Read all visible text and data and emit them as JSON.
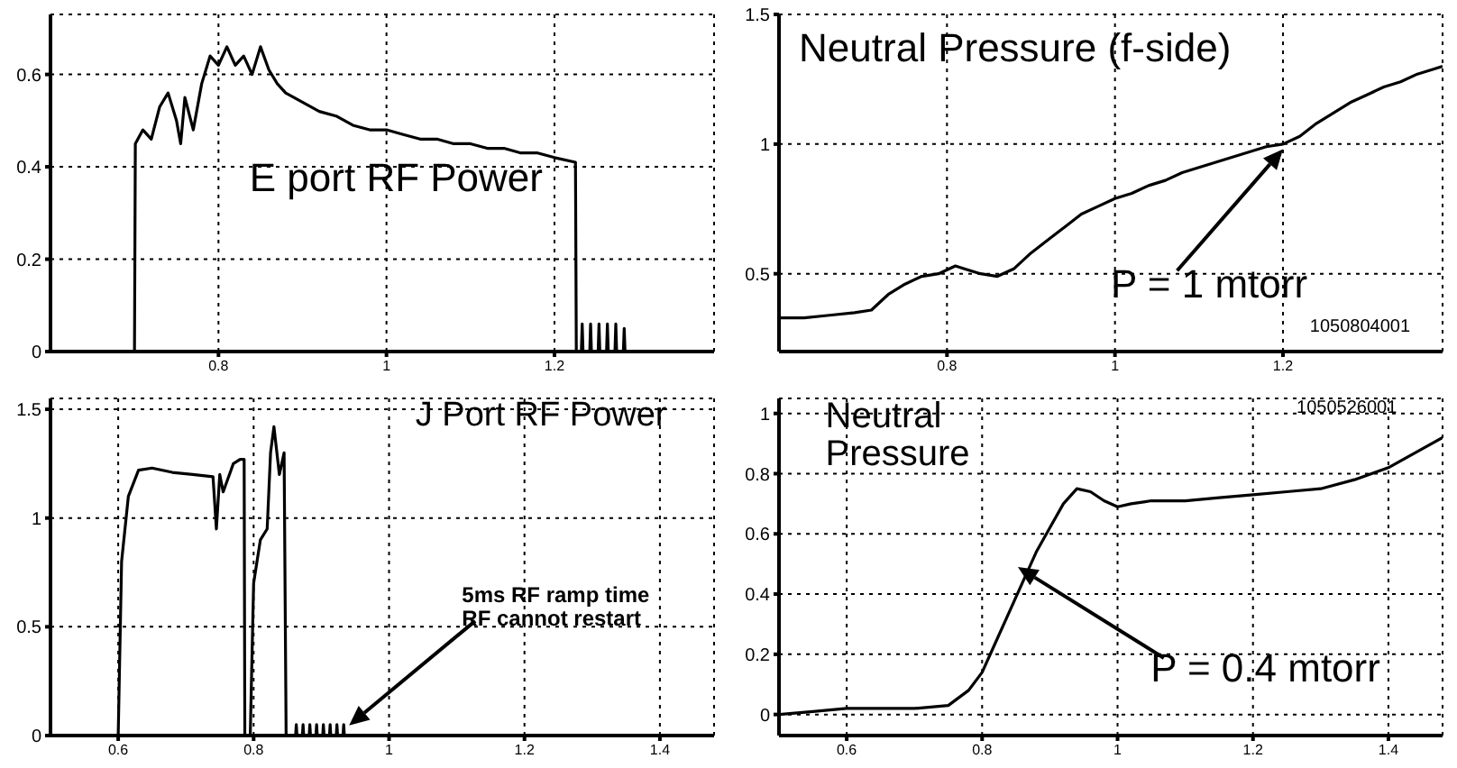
{
  "chart_data": [
    {
      "type": "line",
      "title": "E port RF Power",
      "xlim": [
        0.6,
        1.39
      ],
      "xticks": [
        0.8,
        1,
        1.2
      ],
      "ylim": [
        0,
        0.73
      ],
      "yticks": [
        0,
        0.2,
        0.4,
        0.6
      ],
      "grid": true,
      "legend": false,
      "marker": "none",
      "line_style": "solid",
      "x": [
        0.6,
        0.7,
        0.701,
        0.71,
        0.72,
        0.73,
        0.74,
        0.75,
        0.755,
        0.76,
        0.77,
        0.78,
        0.79,
        0.8,
        0.81,
        0.82,
        0.83,
        0.84,
        0.85,
        0.86,
        0.87,
        0.88,
        0.9,
        0.92,
        0.94,
        0.96,
        0.98,
        1.0,
        1.02,
        1.04,
        1.06,
        1.08,
        1.1,
        1.12,
        1.14,
        1.16,
        1.18,
        1.2,
        1.225,
        1.226,
        1.232,
        1.233,
        1.234,
        1.242,
        1.243,
        1.244,
        1.252,
        1.253,
        1.254,
        1.262,
        1.263,
        1.264,
        1.272,
        1.273,
        1.274,
        1.282,
        1.283,
        1.284,
        1.39
      ],
      "series": [
        {
          "color": "#000000",
          "values": [
            0,
            0,
            0.45,
            0.48,
            0.46,
            0.53,
            0.56,
            0.5,
            0.45,
            0.55,
            0.48,
            0.58,
            0.64,
            0.62,
            0.66,
            0.62,
            0.64,
            0.6,
            0.66,
            0.61,
            0.58,
            0.56,
            0.54,
            0.52,
            0.51,
            0.49,
            0.48,
            0.48,
            0.47,
            0.46,
            0.46,
            0.45,
            0.45,
            0.44,
            0.44,
            0.43,
            0.43,
            0.42,
            0.41,
            0,
            0,
            0.06,
            0,
            0,
            0.06,
            0,
            0,
            0.06,
            0,
            0,
            0.06,
            0,
            0,
            0.06,
            0,
            0,
            0.05,
            0,
            0
          ]
        }
      ]
    },
    {
      "type": "line",
      "title": "Neutral Pressure (f-side)",
      "xlim": [
        0.6,
        1.39
      ],
      "xticks": [
        0.8,
        1,
        1.2
      ],
      "ylim": [
        0.2,
        1.5
      ],
      "yticks": [
        0.5,
        1,
        1.5
      ],
      "grid": true,
      "legend": false,
      "marker": "none",
      "line_style": "solid",
      "annotations": [
        {
          "text": "P = 1 mtorr",
          "x": 1.2,
          "y": 0.98
        },
        "1050804001"
      ],
      "x": [
        0.6,
        0.63,
        0.66,
        0.69,
        0.71,
        0.73,
        0.75,
        0.77,
        0.79,
        0.81,
        0.82,
        0.84,
        0.86,
        0.88,
        0.9,
        0.92,
        0.94,
        0.96,
        0.98,
        1.0,
        1.02,
        1.04,
        1.06,
        1.08,
        1.1,
        1.12,
        1.14,
        1.16,
        1.18,
        1.2,
        1.22,
        1.24,
        1.26,
        1.28,
        1.3,
        1.32,
        1.34,
        1.36,
        1.38,
        1.39
      ],
      "series": [
        {
          "color": "#000000",
          "values": [
            0.33,
            0.33,
            0.34,
            0.35,
            0.36,
            0.42,
            0.46,
            0.49,
            0.5,
            0.53,
            0.52,
            0.5,
            0.49,
            0.52,
            0.58,
            0.63,
            0.68,
            0.73,
            0.76,
            0.79,
            0.81,
            0.84,
            0.86,
            0.89,
            0.91,
            0.93,
            0.95,
            0.97,
            0.99,
            1.0,
            1.03,
            1.08,
            1.12,
            1.16,
            1.19,
            1.22,
            1.24,
            1.27,
            1.29,
            1.3
          ]
        }
      ]
    },
    {
      "type": "line",
      "title": "J Port RF Power",
      "xlim": [
        0.5,
        1.48
      ],
      "xticks": [
        0.6,
        0.8,
        1,
        1.2,
        1.4
      ],
      "ylim": [
        0,
        1.55
      ],
      "yticks": [
        0,
        0.5,
        1,
        1.5
      ],
      "grid": true,
      "legend": false,
      "marker": "none",
      "line_style": "solid",
      "annotations": [
        "5ms RF ramp time RF cannot restart"
      ],
      "x": [
        0.5,
        0.6,
        0.605,
        0.615,
        0.63,
        0.65,
        0.68,
        0.71,
        0.74,
        0.745,
        0.75,
        0.755,
        0.77,
        0.78,
        0.786,
        0.787,
        0.795,
        0.8,
        0.81,
        0.82,
        0.825,
        0.83,
        0.838,
        0.845,
        0.848,
        0.862,
        0.863,
        0.864,
        0.872,
        0.873,
        0.874,
        0.882,
        0.883,
        0.884,
        0.892,
        0.893,
        0.894,
        0.902,
        0.903,
        0.904,
        0.912,
        0.913,
        0.914,
        0.922,
        0.923,
        0.924,
        0.932,
        0.933,
        0.934,
        1.48
      ],
      "series": [
        {
          "color": "#000000",
          "values": [
            0,
            0,
            0.8,
            1.1,
            1.22,
            1.23,
            1.21,
            1.2,
            1.19,
            0.95,
            1.2,
            1.12,
            1.25,
            1.27,
            1.27,
            0,
            0,
            0.7,
            0.9,
            0.95,
            1.3,
            1.42,
            1.2,
            1.3,
            0,
            0,
            0.05,
            0,
            0,
            0.05,
            0,
            0,
            0.05,
            0,
            0,
            0.05,
            0,
            0,
            0.05,
            0,
            0,
            0.05,
            0,
            0,
            0.05,
            0,
            0,
            0.05,
            0,
            0
          ]
        }
      ]
    },
    {
      "type": "line",
      "title": "Neutral Pressure",
      "xlim": [
        0.5,
        1.48
      ],
      "xticks": [
        0.6,
        0.8,
        1,
        1.2,
        1.4
      ],
      "ylim": [
        -0.07,
        1.05
      ],
      "yticks": [
        0,
        0.2,
        0.4,
        0.6,
        0.8,
        1
      ],
      "grid": true,
      "legend": false,
      "marker": "none",
      "line_style": "solid",
      "annotations": [
        "P = 0.4 mtorr",
        "1050526001"
      ],
      "x": [
        0.5,
        0.55,
        0.6,
        0.65,
        0.7,
        0.75,
        0.78,
        0.8,
        0.82,
        0.84,
        0.86,
        0.88,
        0.9,
        0.92,
        0.94,
        0.96,
        0.98,
        1.0,
        1.02,
        1.05,
        1.1,
        1.15,
        1.2,
        1.25,
        1.3,
        1.35,
        1.4,
        1.44,
        1.48
      ],
      "series": [
        {
          "color": "#000000",
          "values": [
            0,
            0.01,
            0.02,
            0.02,
            0.02,
            0.03,
            0.08,
            0.14,
            0.24,
            0.34,
            0.44,
            0.54,
            0.62,
            0.7,
            0.75,
            0.74,
            0.71,
            0.69,
            0.7,
            0.71,
            0.71,
            0.72,
            0.73,
            0.74,
            0.75,
            0.78,
            0.82,
            0.87,
            0.92
          ]
        }
      ]
    }
  ]
}
